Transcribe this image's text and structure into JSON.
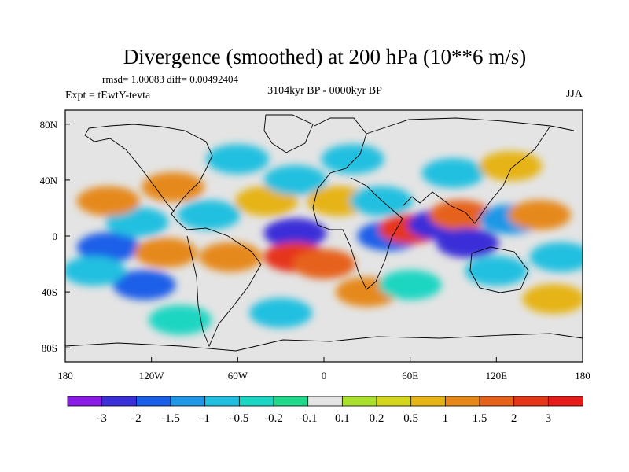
{
  "chart_data": {
    "type": "heatmap",
    "title": "Divergence (smoothed) at 200 hPa (10**6 m/s)",
    "stats_text": "rmsd= 1.00083 diff= 0.00492404",
    "left_label": "Expt = tEwtY-tevta",
    "center_label": "3104kyr BP - 0000kyr BP",
    "right_label": "JJA",
    "x_range": [
      -180,
      180
    ],
    "y_range": [
      -90,
      90
    ],
    "x_ticks": [
      {
        "value": -180,
        "label": "180"
      },
      {
        "value": -120,
        "label": "120W"
      },
      {
        "value": -60,
        "label": "60W"
      },
      {
        "value": 0,
        "label": "0"
      },
      {
        "value": 60,
        "label": "60E"
      },
      {
        "value": 120,
        "label": "120E"
      },
      {
        "value": 180,
        "label": "180"
      }
    ],
    "y_ticks": [
      {
        "value": 80,
        "label": "80N"
      },
      {
        "value": 40,
        "label": "40N"
      },
      {
        "value": 0,
        "label": "0"
      },
      {
        "value": -40,
        "label": "40S"
      },
      {
        "value": -80,
        "label": "80S"
      }
    ],
    "colorbar": {
      "colors": [
        "#8a1ae6",
        "#3a2fd8",
        "#1b5fe8",
        "#1f97e6",
        "#22c0e0",
        "#1ad6c2",
        "#20d98a",
        "#e4e4e4",
        "#a8e02c",
        "#d4d61e",
        "#e6b414",
        "#e6891a",
        "#e6621a",
        "#e6361a",
        "#e61a1a"
      ],
      "labels": [
        "-3",
        "-2",
        "-1.5",
        "-1",
        "-0.5",
        "-0.2",
        "-0.1",
        "0.1",
        "0.2",
        "0.5",
        "1",
        "1.5",
        "2",
        "3"
      ]
    },
    "field_cells": [
      {
        "lon": -150,
        "lat": -8,
        "value": -1.6
      },
      {
        "lon": -125,
        "lat": -35,
        "value": -1.7
      },
      {
        "lon": -160,
        "lat": -25,
        "value": -1.0
      },
      {
        "lon": -110,
        "lat": -12,
        "value": 1.2
      },
      {
        "lon": -65,
        "lat": -15,
        "value": 1.0
      },
      {
        "lon": -130,
        "lat": 10,
        "value": -1.0
      },
      {
        "lon": -80,
        "lat": 15,
        "value": -0.8
      },
      {
        "lon": -150,
        "lat": 25,
        "value": 1.0
      },
      {
        "lon": -105,
        "lat": 35,
        "value": 1.0
      },
      {
        "lon": -40,
        "lat": 25,
        "value": 0.8
      },
      {
        "lon": -20,
        "lat": 2,
        "value": -3.0
      },
      {
        "lon": -20,
        "lat": -15,
        "value": 2.2
      },
      {
        "lon": 0,
        "lat": -20,
        "value": 1.5
      },
      {
        "lon": 30,
        "lat": -40,
        "value": 1.2
      },
      {
        "lon": 45,
        "lat": 0,
        "value": -2.0
      },
      {
        "lon": 60,
        "lat": 5,
        "value": 2.6
      },
      {
        "lon": 80,
        "lat": 8,
        "value": -2.2
      },
      {
        "lon": 95,
        "lat": 15,
        "value": 1.8
      },
      {
        "lon": 100,
        "lat": -5,
        "value": -2.6
      },
      {
        "lon": 130,
        "lat": 12,
        "value": -1.5
      },
      {
        "lon": 150,
        "lat": 15,
        "value": 1.0
      },
      {
        "lon": 165,
        "lat": -15,
        "value": -1.0
      },
      {
        "lon": 120,
        "lat": -25,
        "value": -0.8
      },
      {
        "lon": 160,
        "lat": -45,
        "value": 0.5
      },
      {
        "lon": -100,
        "lat": -60,
        "value": -0.5
      },
      {
        "lon": -30,
        "lat": -55,
        "value": -0.8
      },
      {
        "lon": 20,
        "lat": 55,
        "value": -0.6
      },
      {
        "lon": 90,
        "lat": 45,
        "value": -0.7
      },
      {
        "lon": -60,
        "lat": 55,
        "value": -0.6
      },
      {
        "lon": 130,
        "lat": 50,
        "value": 0.6
      },
      {
        "lon": -20,
        "lat": 40,
        "value": -0.8
      },
      {
        "lon": 10,
        "lat": 25,
        "value": 0.9
      },
      {
        "lon": 60,
        "lat": -35,
        "value": -0.5
      },
      {
        "lon": 40,
        "lat": 25,
        "value": -0.6
      }
    ]
  }
}
